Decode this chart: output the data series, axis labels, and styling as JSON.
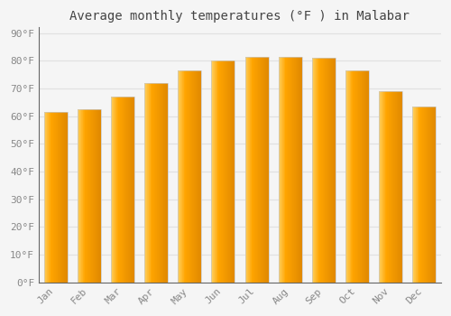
{
  "title": "Average monthly temperatures (°F ) in Malabar",
  "months": [
    "Jan",
    "Feb",
    "Mar",
    "Apr",
    "May",
    "Jun",
    "Jul",
    "Aug",
    "Sep",
    "Oct",
    "Nov",
    "Dec"
  ],
  "values": [
    61.5,
    62.5,
    67,
    72,
    76.5,
    80,
    81.5,
    81.5,
    81,
    76.5,
    69,
    63.5
  ],
  "bar_color_main": "#FFA500",
  "bar_color_light": "#FFD060",
  "bar_color_dark": "#E07800",
  "bar_edge_color": "#C8C8C8",
  "background_color": "#f5f5f5",
  "grid_color": "#e0e0e0",
  "ytick_labels": [
    "0°F",
    "10°F",
    "20°F",
    "30°F",
    "40°F",
    "50°F",
    "60°F",
    "70°F",
    "80°F",
    "90°F"
  ],
  "ytick_values": [
    0,
    10,
    20,
    30,
    40,
    50,
    60,
    70,
    80,
    90
  ],
  "ylim": [
    0,
    92
  ],
  "title_fontsize": 10,
  "tick_fontsize": 8,
  "font_color": "#888888",
  "bar_width": 0.7
}
